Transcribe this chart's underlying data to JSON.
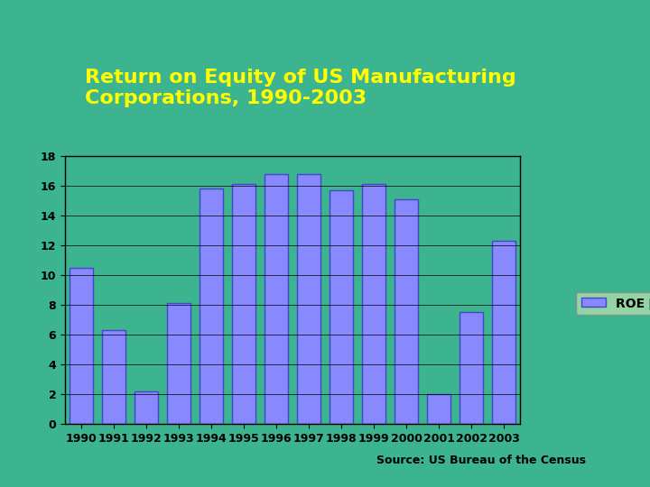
{
  "years": [
    1990,
    1991,
    1992,
    1993,
    1994,
    1995,
    1996,
    1997,
    1998,
    1999,
    2000,
    2001,
    2002,
    2003
  ],
  "values": [
    10.5,
    6.3,
    2.2,
    8.1,
    15.8,
    16.1,
    16.8,
    16.8,
    15.7,
    16.1,
    15.1,
    2.0,
    7.5,
    12.3
  ],
  "bar_color": "#8888FF",
  "bar_edge_color": "#4444CC",
  "background_color": "#3CB490",
  "plot_bg_color": "#3CB490",
  "title": "Return on Equity of US Manufacturing\nCorporations, 1990-2003",
  "title_bg_color": "#001060",
  "title_text_color": "#FFFF00",
  "legend_label": "ROE （ %）",
  "source_text": "Source: US Bureau of the Census",
  "ylim": [
    0,
    18
  ],
  "yticks": [
    0,
    2,
    4,
    6,
    8,
    10,
    12,
    14,
    16,
    18
  ],
  "grid_color": "#000000",
  "axis_color": "#000000",
  "tick_label_fontsize": 9,
  "title_fontsize": 16
}
